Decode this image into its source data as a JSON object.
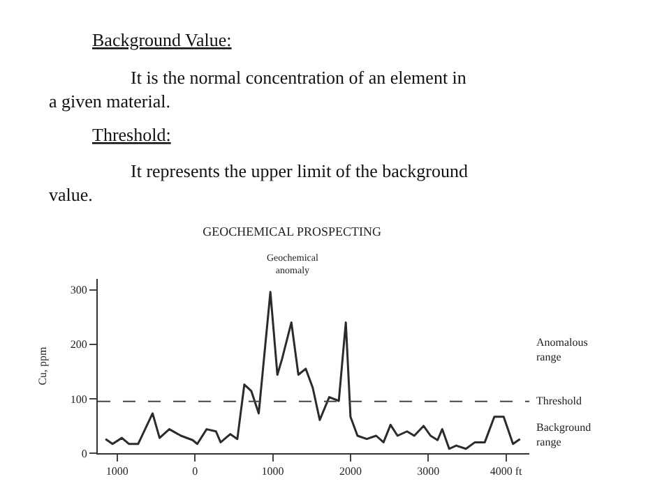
{
  "chart_data": {
    "type": "line",
    "title": "GEOCHEMICAL PROSPECTING",
    "ylabel": "Cu, ppm",
    "x": [
      -1150,
      -1060,
      -940,
      -850,
      -730,
      -545,
      -455,
      -330,
      -180,
      -30,
      30,
      150,
      270,
      330,
      455,
      545,
      635,
      725,
      820,
      970,
      1060,
      1120,
      1240,
      1330,
      1425,
      1515,
      1605,
      1727,
      1850,
      1940,
      2000,
      2090,
      2210,
      2330,
      2425,
      2515,
      2605,
      2727,
      2820,
      2940,
      3030,
      3120,
      3180,
      3270,
      3360,
      3485,
      3600,
      3727,
      3850,
      3970,
      4090,
      4180
    ],
    "series": [
      {
        "color": "#2b2b2b",
        "values": [
          26,
          17,
          28,
          17,
          17,
          73,
          28,
          44,
          32,
          24,
          17,
          44,
          40,
          20,
          35,
          26,
          126,
          114,
          73,
          296,
          144,
          173,
          240,
          144,
          155,
          120,
          61,
          103,
          96,
          240,
          67,
          32,
          26,
          32,
          20,
          52,
          32,
          40,
          32,
          50,
          32,
          24,
          44,
          8,
          14,
          8,
          20,
          20,
          67,
          67,
          17,
          26
        ]
      }
    ],
    "xlim": [
      -1250,
      4300
    ],
    "xticks": [
      {
        "value": -1000,
        "label": "1000"
      },
      0,
      1000,
      2000,
      3000,
      {
        "value": 4000,
        "label": "4000 ft"
      }
    ],
    "ylim": [
      0,
      320
    ],
    "yticks": [
      0,
      100,
      200,
      300
    ],
    "ref_lines": [
      {
        "axis": "y",
        "value": 95,
        "label": "Threshold",
        "line_style": "dashed",
        "color": "#444444"
      }
    ],
    "annotations": [
      "Background Value:",
      "It is the normal concentration of an element in a given material.",
      "Threshold:",
      "It represents the upper limit of the background value.",
      "Geochemical anomaly",
      "Anomalous range",
      "Background range"
    ],
    "legend": false,
    "marker": "none",
    "line_style": "solid"
  }
}
